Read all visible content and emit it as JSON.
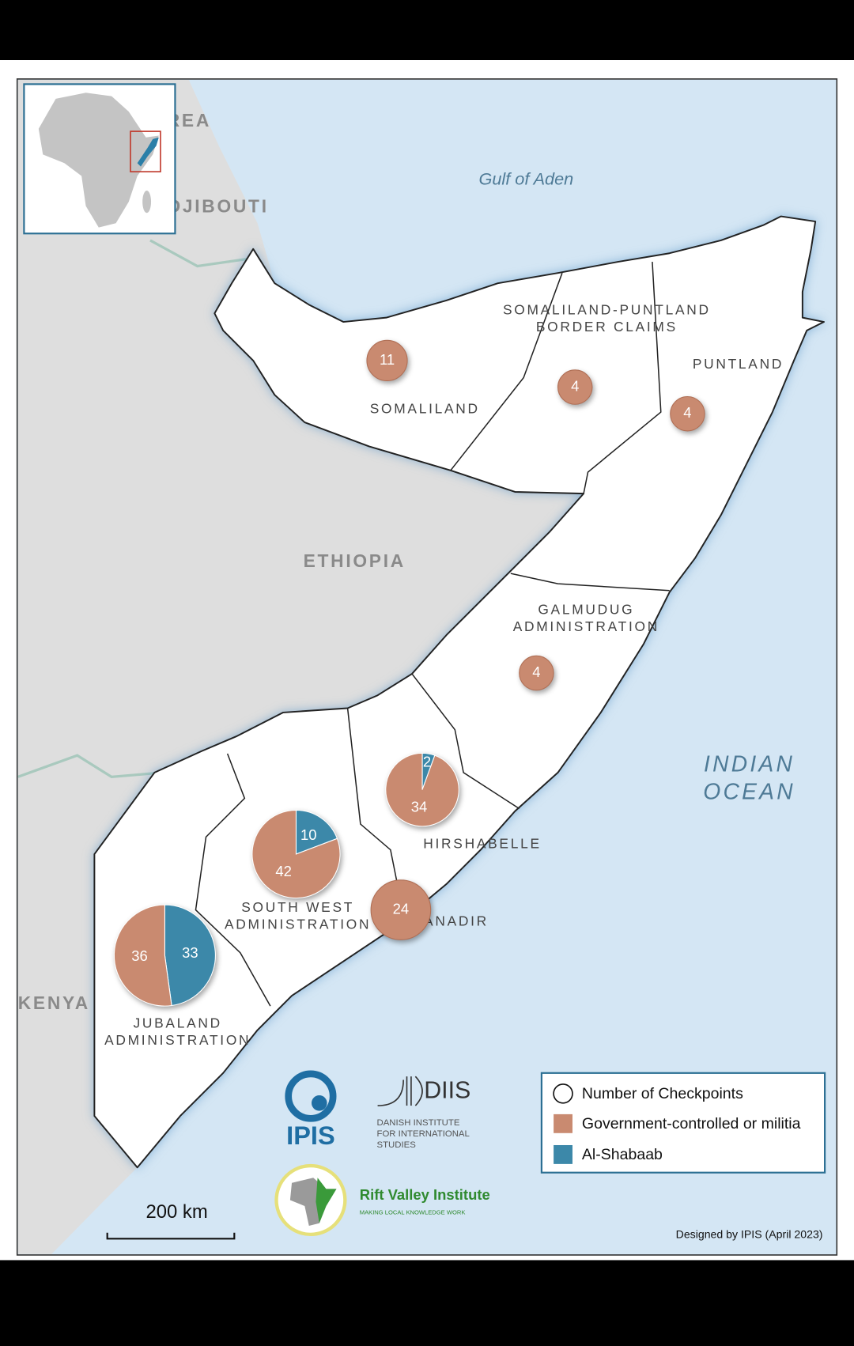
{
  "water_labels": [
    {
      "lines": [
        "Gulf of Aden"
      ]
    },
    {
      "lines": [
        "INDIAN",
        "OCEAN"
      ]
    }
  ],
  "country_labels": [
    "ERITREA",
    "DJIBOUTI",
    "ETHIOPIA",
    "KENYA"
  ],
  "regions": [
    {
      "lines": [
        "SOMALILAND"
      ]
    },
    {
      "lines": [
        "SOMALILAND-PUNTLAND",
        "BORDER CLAIMS"
      ]
    },
    {
      "lines": [
        "PUNTLAND"
      ]
    },
    {
      "lines": [
        "GALMUDUG",
        "ADMINISTRATION"
      ]
    },
    {
      "lines": [
        "HIRSHABELLE"
      ]
    },
    {
      "lines": [
        "SOUTH WEST",
        "ADMINISTRATION"
      ]
    },
    {
      "lines": [
        "BANADIR"
      ]
    },
    {
      "lines": [
        "JUBALAND",
        "ADMINISTRATION"
      ]
    }
  ],
  "checkpoints": [
    {
      "government": 11
    },
    {
      "government": 4
    },
    {
      "government": 4
    },
    {
      "government": 4
    },
    {
      "government": 34,
      "al_shabaab": 2
    },
    {
      "government": 42,
      "al_shabaab": 10
    },
    {
      "government": 24
    },
    {
      "government": 36,
      "al_shabaab": 33
    }
  ],
  "legend": {
    "title": "Number of Checkpoints",
    "items": [
      {
        "label": "Government-controlled or militia",
        "color": "#c98a70"
      },
      {
        "label": "Al-Shabaab",
        "color": "#3c88a9"
      }
    ]
  },
  "scale": "200 km",
  "logos": {
    "ipis": "IPIS",
    "diis": "DIIS",
    "diis_subtitle": [
      "DANISH INSTITUTE",
      "FOR INTERNATIONAL",
      "STUDIES"
    ],
    "rvi": "Rift Valley Institute",
    "rvi_tagline": "MAKING LOCAL KNOWLEDGE WORK"
  },
  "credit": "Designed by IPIS (April 2023)"
}
